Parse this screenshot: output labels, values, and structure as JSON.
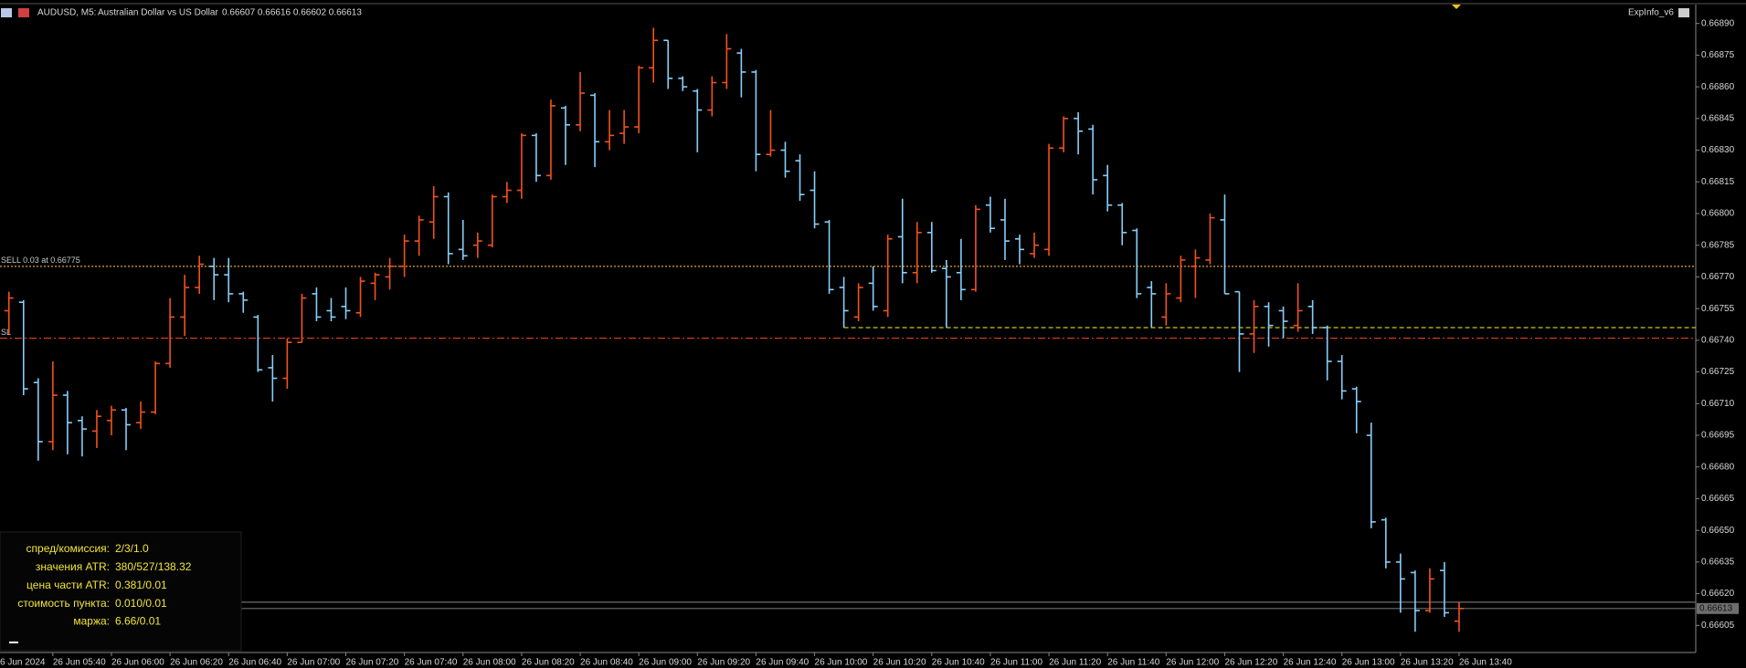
{
  "header": {
    "symbol": "AUDUSD, M5:",
    "description": "Australian Dollar vs US Dollar",
    "quote": "0.66607 0.66616 0.66602 0.66613",
    "indicator": "ExpInfo_v6"
  },
  "info_panel": {
    "rows": [
      {
        "label": "спред/комиссия:",
        "value": "2/3/1.0"
      },
      {
        "label": "значения ATR:",
        "value": "380/527/138.32"
      },
      {
        "label": "цена части ATR:",
        "value": "0.381/0.01"
      },
      {
        "label": "стоимость пункта:",
        "value": "0.010/0.01"
      },
      {
        "label": "маржа:",
        "value": "6.66/0.01"
      }
    ]
  },
  "chart_data": {
    "type": "ohlc",
    "date_label": "6 Jun 2024",
    "categories": [
      null,
      null,
      null,
      "26 Jun 05:40",
      null,
      null,
      null,
      "26 Jun 06:00",
      null,
      null,
      null,
      "26 Jun 06:20",
      null,
      null,
      null,
      "26 Jun 06:40",
      null,
      null,
      null,
      "26 Jun 07:00",
      null,
      null,
      null,
      "26 Jun 07:20",
      null,
      null,
      null,
      "26 Jun 07:40",
      null,
      null,
      null,
      "26 Jun 08:00",
      null,
      null,
      null,
      "26 Jun 08:20",
      null,
      null,
      null,
      "26 Jun 08:40",
      null,
      null,
      null,
      "26 Jun 09:00",
      null,
      null,
      null,
      "26 Jun 09:20",
      null,
      null,
      null,
      "26 Jun 09:40",
      null,
      null,
      null,
      "26 Jun 10:00",
      null,
      null,
      null,
      "26 Jun 10:20",
      null,
      null,
      null,
      "26 Jun 10:40",
      null,
      null,
      null,
      "26 Jun 11:00",
      null,
      null,
      null,
      "26 Jun 11:20",
      null,
      null,
      null,
      "26 Jun 11:40",
      null,
      null,
      null,
      "26 Jun 12:00",
      null,
      null,
      null,
      "26 Jun 12:20",
      null,
      null,
      null,
      "26 Jun 12:40",
      null,
      null,
      null,
      "26 Jun 13:00",
      null,
      null,
      null,
      "26 Jun 13:20",
      null,
      null,
      null,
      "26 Jun 13:40"
    ],
    "open": [
      0.66754,
      0.66758,
      0.6672,
      0.66692,
      0.66714,
      0.66702,
      0.66697,
      0.66702,
      0.66707,
      0.66701,
      0.66706,
      0.66729,
      0.66751,
      0.66765,
      0.66775,
      0.66771,
      0.66762,
      0.66751,
      0.66727,
      0.66722,
      0.66739,
      0.66762,
      0.66754,
      0.66756,
      0.66753,
      0.66767,
      0.6677,
      0.66775,
      0.66787,
      0.66796,
      0.66808,
      0.66783,
      0.66785,
      0.66785,
      0.66808,
      0.66811,
      0.66837,
      0.66818,
      0.6685,
      0.66842,
      0.66856,
      0.66834,
      0.66838,
      0.66841,
      0.66869,
      0.66882,
      0.66864,
      0.66858,
      0.66849,
      0.66862,
      0.66876,
      0.66867,
      0.66828,
      0.6683,
      0.66825,
      0.66811,
      0.66796,
      0.66765,
      0.66751,
      0.66767,
      0.66754,
      0.66789,
      0.66772,
      0.66791,
      0.66774,
      0.66772,
      0.66764,
      0.66804,
      0.66797,
      0.66788,
      0.66781,
      0.66783,
      0.66831,
      0.66845,
      0.6684,
      0.66818,
      0.66804,
      0.66792,
      0.66765,
      0.66751,
      0.6676,
      0.66775,
      0.66778,
      0.66797,
      0.66763,
      0.66743,
      0.66756,
      0.66754,
      0.66747,
      0.66756,
      0.66746,
      0.6673,
      0.66717,
      0.66695,
      0.66655,
      0.66635,
      0.6663,
      0.66612,
      0.66631,
      0.66607
    ],
    "high": [
      0.66763,
      0.66759,
      0.66722,
      0.6673,
      0.66716,
      0.66704,
      0.66707,
      0.66709,
      0.66708,
      0.66711,
      0.6673,
      0.6676,
      0.66771,
      0.6678,
      0.66779,
      0.66779,
      0.66763,
      0.66752,
      0.66733,
      0.66741,
      0.66762,
      0.66765,
      0.6676,
      0.66765,
      0.6677,
      0.66772,
      0.66779,
      0.6679,
      0.66799,
      0.66813,
      0.6681,
      0.66797,
      0.66791,
      0.66809,
      0.66815,
      0.66838,
      0.66838,
      0.66854,
      0.66851,
      0.66867,
      0.66857,
      0.66849,
      0.66849,
      0.6687,
      0.66888,
      0.66882,
      0.66865,
      0.66859,
      0.66865,
      0.66885,
      0.66878,
      0.66868,
      0.66849,
      0.66834,
      0.66828,
      0.6682,
      0.66797,
      0.6677,
      0.66767,
      0.66775,
      0.6679,
      0.66807,
      0.66796,
      0.66796,
      0.66778,
      0.66788,
      0.66804,
      0.66808,
      0.66807,
      0.6679,
      0.66791,
      0.66833,
      0.66846,
      0.66848,
      0.66842,
      0.66823,
      0.66805,
      0.66793,
      0.66768,
      0.66767,
      0.6678,
      0.66783,
      0.668,
      0.66809,
      0.66763,
      0.66759,
      0.66758,
      0.66756,
      0.66767,
      0.66759,
      0.66747,
      0.66733,
      0.66718,
      0.66701,
      0.66656,
      0.66639,
      0.66631,
      0.66632,
      0.66635,
      0.66616
    ],
    "low": [
      0.66743,
      0.66714,
      0.66683,
      0.66688,
      0.66686,
      0.66685,
      0.66689,
      0.66695,
      0.66688,
      0.66698,
      0.66705,
      0.66727,
      0.66742,
      0.66762,
      0.66759,
      0.66758,
      0.66753,
      0.66725,
      0.66711,
      0.66717,
      0.66739,
      0.66749,
      0.66749,
      0.6675,
      0.66751,
      0.66759,
      0.66764,
      0.6677,
      0.6678,
      0.66788,
      0.66776,
      0.66778,
      0.66779,
      0.66784,
      0.66805,
      0.66807,
      0.66815,
      0.66816,
      0.66823,
      0.66839,
      0.66822,
      0.6683,
      0.66833,
      0.66838,
      0.66862,
      0.66859,
      0.66858,
      0.66829,
      0.66846,
      0.66859,
      0.66855,
      0.6682,
      0.66827,
      0.66817,
      0.66806,
      0.66793,
      0.66762,
      0.66746,
      0.66749,
      0.66754,
      0.66751,
      0.66767,
      0.66767,
      0.66772,
      0.66746,
      0.66759,
      0.66763,
      0.66791,
      0.66778,
      0.66776,
      0.66779,
      0.6678,
      0.66829,
      0.66828,
      0.66809,
      0.66801,
      0.66785,
      0.6676,
      0.66746,
      0.66747,
      0.66758,
      0.6676,
      0.66776,
      0.66762,
      0.66725,
      0.66734,
      0.66737,
      0.66741,
      0.66744,
      0.66743,
      0.66721,
      0.66712,
      0.66696,
      0.66651,
      0.66632,
      0.66611,
      0.66602,
      0.66611,
      0.66609,
      0.66602
    ],
    "close": [
      0.6676,
      0.66717,
      0.66692,
      0.66714,
      0.66701,
      0.66698,
      0.66704,
      0.66707,
      0.667,
      0.66706,
      0.66729,
      0.66751,
      0.66765,
      0.66776,
      0.66771,
      0.66762,
      0.66759,
      0.66726,
      0.66722,
      0.66739,
      0.6676,
      0.66751,
      0.66751,
      0.66754,
      0.66768,
      0.66771,
      0.66775,
      0.66787,
      0.66797,
      0.66808,
      0.66781,
      0.6678,
      0.66787,
      0.66808,
      0.66811,
      0.66837,
      0.66818,
      0.66851,
      0.66842,
      0.66857,
      0.66834,
      0.66837,
      0.66841,
      0.66869,
      0.66882,
      0.66864,
      0.6686,
      0.66849,
      0.66862,
      0.66878,
      0.66867,
      0.66828,
      0.6683,
      0.6682,
      0.66809,
      0.66795,
      0.66764,
      0.66754,
      0.66765,
      0.66756,
      0.66788,
      0.66772,
      0.66791,
      0.66773,
      0.6677,
      0.66764,
      0.66802,
      0.66793,
      0.66787,
      0.66783,
      0.66785,
      0.66831,
      0.66845,
      0.66839,
      0.66816,
      0.66804,
      0.66791,
      0.66762,
      0.66762,
      0.66762,
      0.66778,
      0.66779,
      0.66798,
      0.66762,
      0.66743,
      0.66756,
      0.66747,
      0.66749,
      0.66754,
      0.66746,
      0.6673,
      0.66716,
      0.66711,
      0.66654,
      0.66635,
      0.66627,
      0.66612,
      0.66627,
      0.66611,
      0.66613
    ],
    "up_color": "#f4511e",
    "down_color": "#87cefa",
    "ylim": [
      0.66592,
      0.66899
    ],
    "yticks": [
      {
        "value": 0.6689,
        "label": "0.66890"
      },
      0.66875,
      {
        "value": 0.6686,
        "label": "0.66860"
      },
      0.66845,
      {
        "value": 0.6683,
        "label": "0.66830"
      },
      0.66815,
      {
        "value": 0.668,
        "label": "0.66800"
      },
      0.66785,
      {
        "value": 0.6677,
        "label": "0.66770"
      },
      0.66755,
      {
        "value": 0.6674,
        "label": "0.66740"
      },
      0.66725,
      {
        "value": 0.6671,
        "label": "0.66710"
      },
      0.66695,
      {
        "value": 0.6668,
        "label": "0.66680"
      },
      0.66665,
      {
        "value": 0.6665,
        "label": "0.66650"
      },
      0.66635,
      {
        "value": 0.6662,
        "label": "0.66620"
      },
      0.66605
    ],
    "levels": [
      {
        "label": "SELL 0.03 at 0.66775",
        "value": 0.66775,
        "color": "#e0a52a",
        "style": "dotted"
      },
      {
        "label": "SL",
        "value": 0.66741,
        "color": "#e2401c",
        "style": "dashdot"
      },
      {
        "value": 0.66746,
        "color": "#c8c820",
        "style": "dashed"
      },
      {
        "value": 0.66616,
        "color": "#6e6e6e",
        "style": "solid"
      },
      {
        "value": 0.66613,
        "color": "#6e6e6e",
        "style": "solid"
      }
    ],
    "current_price": 0.66613,
    "grid": false
  }
}
